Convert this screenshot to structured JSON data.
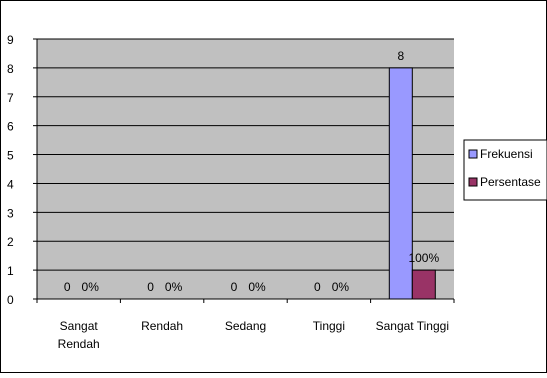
{
  "chart_data": {
    "type": "bar",
    "categories": [
      "Sangat Rendah",
      "Rendah",
      "Sedang",
      "Tinggi",
      "Sangat Tinggi"
    ],
    "category_lines": [
      [
        "Sangat",
        "Rendah"
      ],
      [
        "Rendah"
      ],
      [
        "Sedang"
      ],
      [
        "Tinggi"
      ],
      [
        "Sangat Tinggi"
      ]
    ],
    "series": [
      {
        "name": "Frekuensi",
        "values": [
          0,
          0,
          0,
          0,
          8
        ],
        "labels": [
          "0",
          "0",
          "0",
          "0",
          "8"
        ],
        "color": "#9999ff"
      },
      {
        "name": "Persentase",
        "values": [
          0,
          0,
          0,
          0,
          1
        ],
        "labels": [
          "0%",
          "0%",
          "0%",
          "0%",
          "100%"
        ],
        "color": "#993366"
      }
    ],
    "yticks": [
      "0",
      "1",
      "2",
      "3",
      "4",
      "5",
      "6",
      "7",
      "8",
      "9"
    ],
    "ylim": [
      0,
      9
    ],
    "grid": true,
    "plot_background": "#c0c0c0",
    "legend_position": "right",
    "title": "",
    "xlabel": "",
    "ylabel": ""
  }
}
